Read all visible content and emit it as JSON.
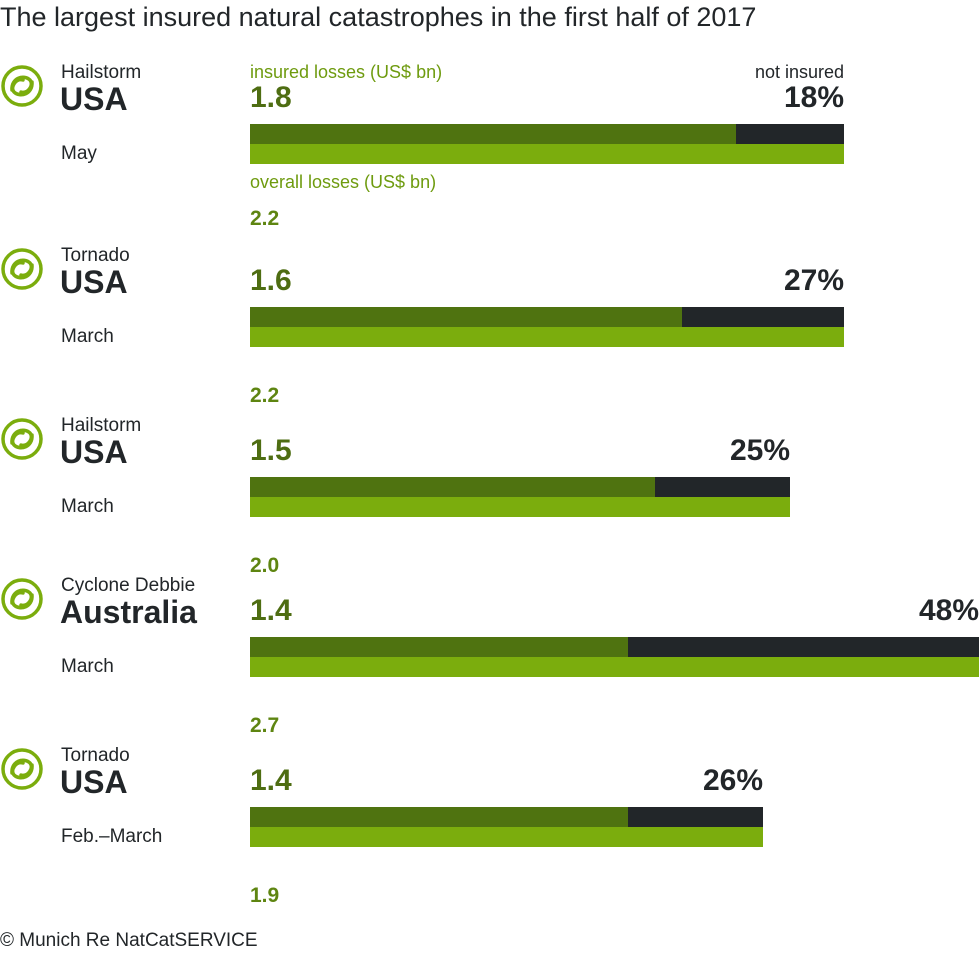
{
  "title": "The largest insured natural catastrophes in the first half of 2017",
  "legend": {
    "insured_label": "insured losses (US$ bn)",
    "not_insured_label": "not insured",
    "overall_label": "overall losses (US$ bn)"
  },
  "source": "© Munich Re NatCatSERVICE",
  "colors": {
    "insured": "#4f7310",
    "overall": "#7bad0d",
    "not_insured": "#222629",
    "icon": "#7bad0d"
  },
  "icon_name": "natural-catastrophe-icon",
  "chart_data": {
    "type": "bar",
    "orientation": "horizontal",
    "title": "The largest insured natural catastrophes in the first half of 2017",
    "xlim": [
      0,
      2.7
    ],
    "grid": false,
    "events": [
      {
        "event": "Hailstorm",
        "country": "USA",
        "month": "May",
        "insured": "1.8",
        "overall": "2.2",
        "not_insured": "18%",
        "insured_value": 1.8,
        "overall_value": 2.2
      },
      {
        "event": "Tornado",
        "country": "USA",
        "month": "March",
        "insured": "1.6",
        "overall": "2.2",
        "not_insured": "27%",
        "insured_value": 1.6,
        "overall_value": 2.2
      },
      {
        "event": "Hailstorm",
        "country": "USA",
        "month": "March",
        "insured": "1.5",
        "overall": "2.0",
        "not_insured": "25%",
        "insured_value": 1.5,
        "overall_value": 2.0
      },
      {
        "event": "Cyclone Debbie",
        "country": "Australia",
        "month": "March",
        "insured": "1.4",
        "overall": "2.7",
        "not_insured": "48%",
        "insured_value": 1.4,
        "overall_value": 2.7
      },
      {
        "event": "Tornado",
        "country": "USA",
        "month": "Feb.–March",
        "insured": "1.4",
        "overall": "1.9",
        "not_insured": "26%",
        "insured_value": 1.4,
        "overall_value": 1.9
      }
    ]
  }
}
